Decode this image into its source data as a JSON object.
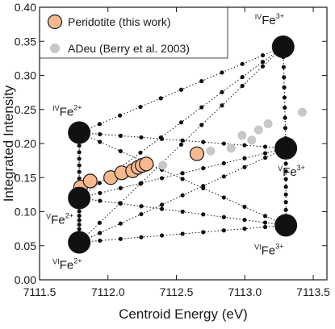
{
  "chart_data": {
    "type": "scatter",
    "xlabel": "Centroid Energy (eV)",
    "ylabel": "Integrated Intensity",
    "xlim": [
      7111.5,
      7113.6
    ],
    "ylim": [
      0.0,
      0.4
    ],
    "xticks": [
      "7111.5",
      "7112.0",
      "7112.5",
      "7113.0",
      "7113.5"
    ],
    "xtick_values": [
      7111.5,
      7112.0,
      7112.5,
      7113.0,
      7113.5
    ],
    "yticks": [
      "0.00",
      "0.05",
      "0.10",
      "0.15",
      "0.20",
      "0.25",
      "0.30",
      "0.35",
      "0.40"
    ],
    "ytick_values": [
      0.0,
      0.05,
      0.1,
      0.15,
      0.2,
      0.25,
      0.3,
      0.35,
      0.4
    ],
    "grid": false,
    "legend_position": "top-left",
    "colors": {
      "peridotite_fill": "#f6b98f",
      "peridotite_edge": "#1a1a1a",
      "adeu": "#c8c8c8",
      "endmember": "#111111",
      "mixing_dot": "#111111"
    },
    "series": [
      {
        "name": "Peridotite (this work)",
        "marker": "circle-outlined",
        "points": [
          {
            "x": 7111.8,
            "y": 0.136
          },
          {
            "x": 7111.87,
            "y": 0.145
          },
          {
            "x": 7112.02,
            "y": 0.15
          },
          {
            "x": 7112.1,
            "y": 0.157
          },
          {
            "x": 7112.18,
            "y": 0.16
          },
          {
            "x": 7112.22,
            "y": 0.165
          },
          {
            "x": 7112.25,
            "y": 0.168
          },
          {
            "x": 7112.28,
            "y": 0.17
          },
          {
            "x": 7112.65,
            "y": 0.185
          }
        ]
      },
      {
        "name": "ADeu (Berry et al. 2003)",
        "marker": "circle-small",
        "points": [
          {
            "x": 7111.89,
            "y": 0.14
          },
          {
            "x": 7112.05,
            "y": 0.153
          },
          {
            "x": 7112.28,
            "y": 0.165
          },
          {
            "x": 7112.4,
            "y": 0.168
          },
          {
            "x": 7112.75,
            "y": 0.189
          },
          {
            "x": 7112.9,
            "y": 0.193
          },
          {
            "x": 7112.98,
            "y": 0.212
          },
          {
            "x": 7113.05,
            "y": 0.205
          },
          {
            "x": 7113.1,
            "y": 0.22
          },
          {
            "x": 7113.17,
            "y": 0.229
          },
          {
            "x": 7113.42,
            "y": 0.246
          }
        ]
      }
    ],
    "endmembers": [
      {
        "id": "ivfe2",
        "x": 7111.79,
        "y": 0.216,
        "prefix": "IV",
        "ion": "Fe",
        "charge": "2+",
        "label_side": "above"
      },
      {
        "id": "vfe2",
        "x": 7111.79,
        "y": 0.12,
        "prefix": "V",
        "ion": "Fe",
        "charge": "2+",
        "label_side": "below"
      },
      {
        "id": "vife2",
        "x": 7111.79,
        "y": 0.055,
        "prefix": "VI",
        "ion": "Fe",
        "charge": "2+",
        "label_side": "below"
      },
      {
        "id": "ivfe3",
        "x": 7113.28,
        "y": 0.342,
        "prefix": "IV",
        "ion": "Fe",
        "charge": "3+",
        "label_side": "above"
      },
      {
        "id": "vfe3",
        "x": 7113.3,
        "y": 0.193,
        "prefix": "V",
        "ion": "Fe",
        "charge": "3+",
        "label_side": "below"
      },
      {
        "id": "vife3",
        "x": 7113.3,
        "y": 0.08,
        "prefix": "VI",
        "ion": "Fe",
        "charge": "3+",
        "label_side": "below"
      }
    ],
    "mixing_lines": [
      [
        "ivfe2",
        "ivfe3"
      ],
      [
        "ivfe2",
        "vfe3"
      ],
      [
        "ivfe2",
        "vife3"
      ],
      [
        "vfe2",
        "ivfe3"
      ],
      [
        "vfe2",
        "vfe3"
      ],
      [
        "vfe2",
        "vife3"
      ],
      [
        "vife2",
        "ivfe3"
      ],
      [
        "vife2",
        "vfe3"
      ],
      [
        "vife2",
        "vife3"
      ],
      [
        "ivfe2",
        "vfe2"
      ],
      [
        "vfe2",
        "vife2"
      ],
      [
        "ivfe3",
        "vfe3"
      ],
      [
        "vfe3",
        "vife3"
      ]
    ]
  }
}
